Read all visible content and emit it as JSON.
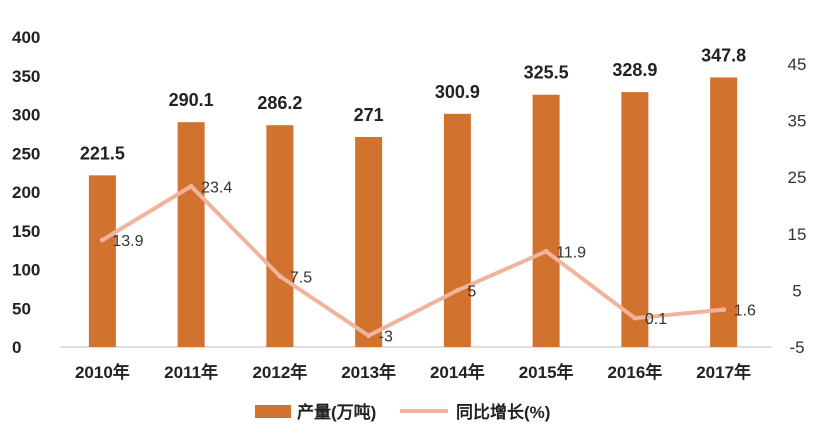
{
  "chart_data": {
    "type": "bar",
    "categories": [
      "2010年",
      "2011年",
      "2012年",
      "2013年",
      "2014年",
      "2015年",
      "2016年",
      "2017年"
    ],
    "series": [
      {
        "name": "产量(万吨)",
        "type": "bar",
        "axis": "left",
        "color": "#D2722F",
        "values": [
          221.5,
          290.1,
          286.2,
          271,
          300.9,
          325.5,
          328.9,
          347.8
        ],
        "labels": [
          "221.5",
          "290.1",
          "286.2",
          "271",
          "300.9",
          "325.5",
          "328.9",
          "347.8"
        ]
      },
      {
        "name": "同比增长(%)",
        "type": "line",
        "axis": "right",
        "color": "#F2B39C",
        "values": [
          13.9,
          23.4,
          7.5,
          -3,
          5,
          11.9,
          0.1,
          1.6
        ],
        "labels": [
          "13.9",
          "23.4",
          "7.5",
          "-3",
          "5",
          "11.9",
          "0.1",
          "1.6"
        ]
      }
    ],
    "left_axis": {
      "ylim": [
        0,
        400
      ],
      "ticks": [
        0,
        50,
        100,
        150,
        200,
        250,
        300,
        350,
        400
      ],
      "tick_labels": [
        "0",
        "50",
        "100",
        "150",
        "200",
        "250",
        "300",
        "350",
        "400"
      ]
    },
    "right_axis": {
      "ylim": [
        -5,
        45
      ],
      "ticks": [
        -5,
        5,
        15,
        25,
        35,
        45
      ],
      "tick_labels": [
        "-5",
        "5",
        "15",
        "25",
        "35",
        "45"
      ]
    },
    "legend": {
      "position": "bottom-center",
      "items": [
        {
          "label": "产量(万吨)",
          "color": "#D2722F",
          "kind": "bar"
        },
        {
          "label": "同比增长(%)",
          "color": "#F2B39C",
          "kind": "line"
        }
      ]
    },
    "grid": false,
    "title": "",
    "xlabel": "",
    "ylabel": ""
  }
}
